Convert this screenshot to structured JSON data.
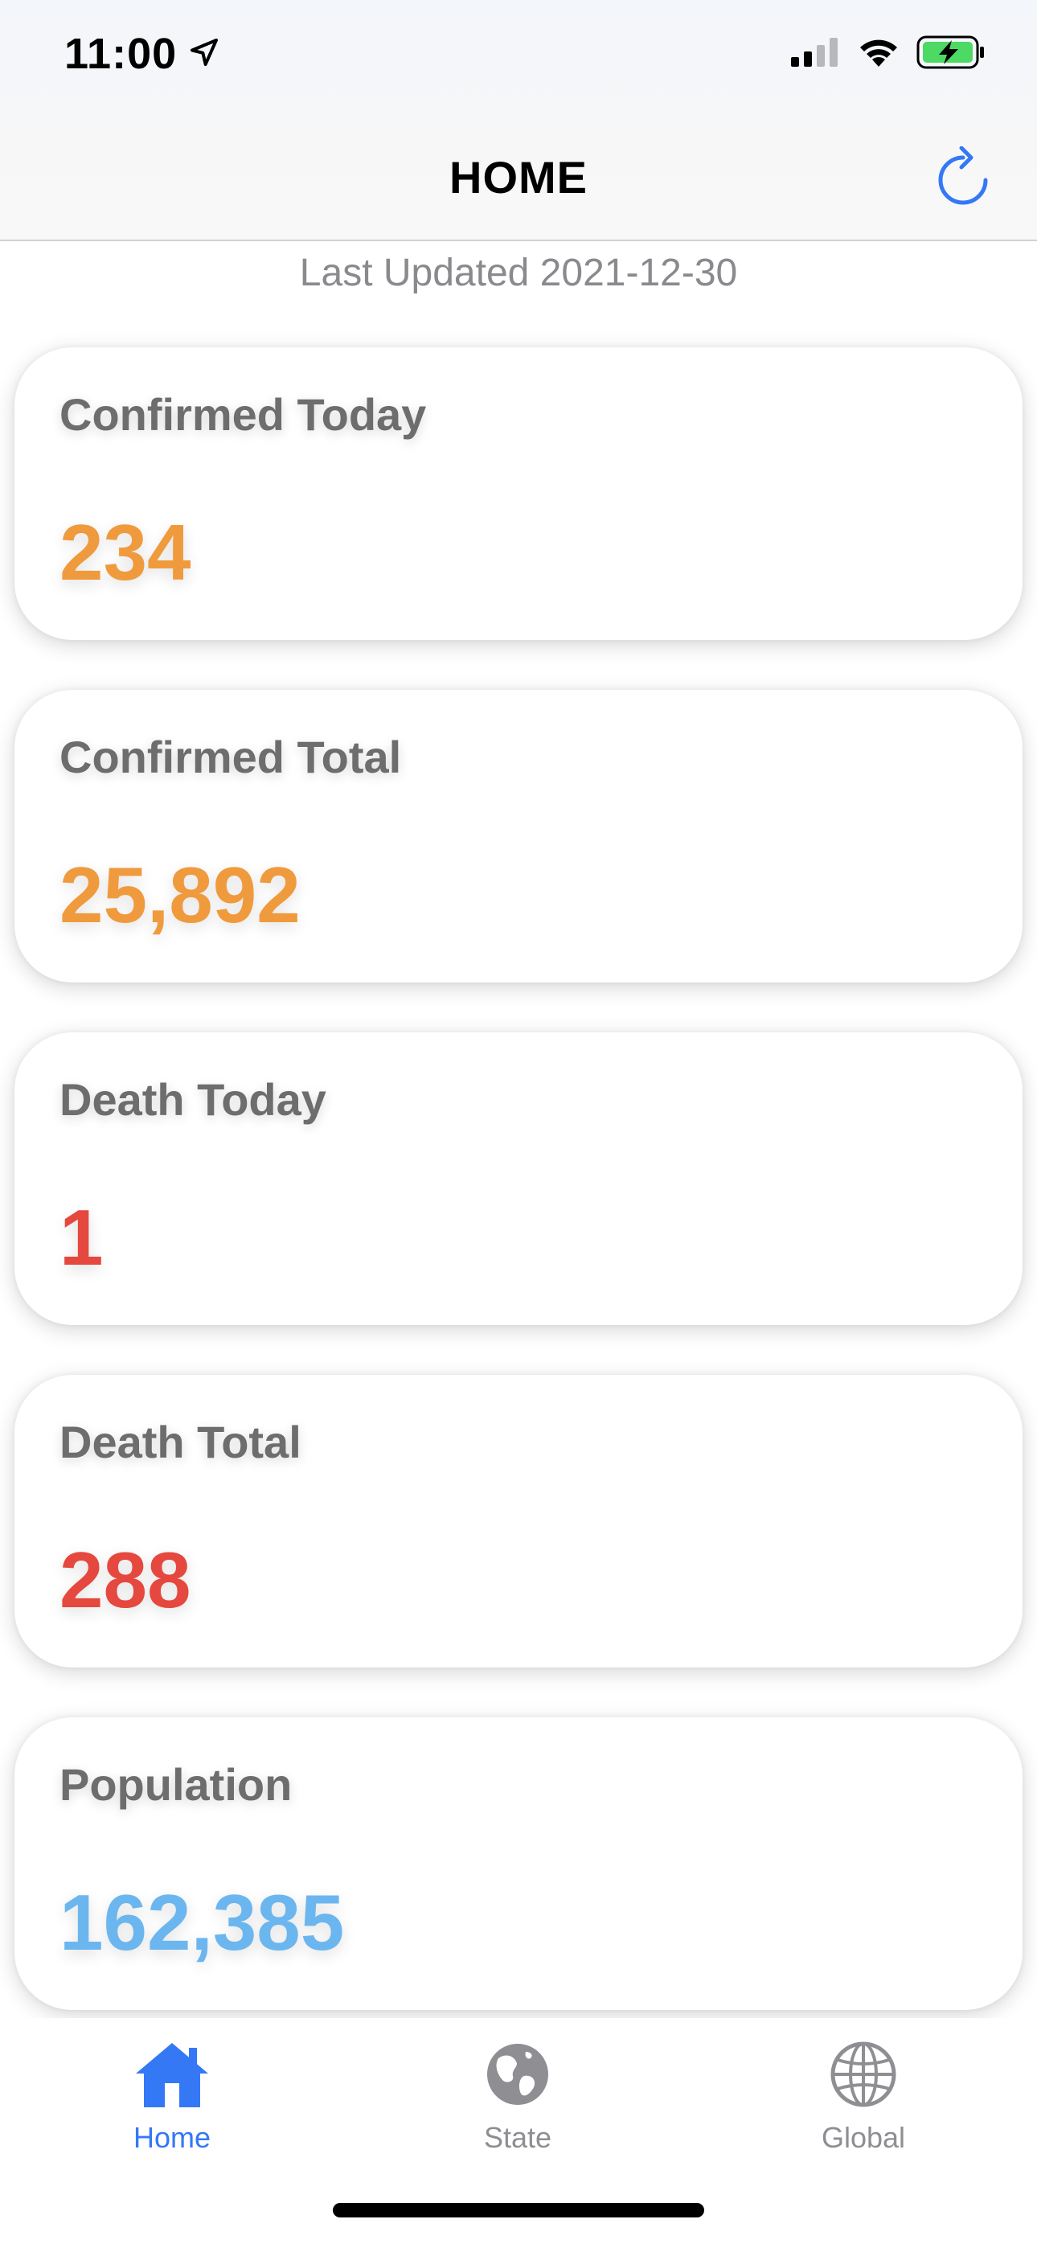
{
  "status_bar": {
    "time": "11:00",
    "location_icon": "location-arrow-icon",
    "signal_icon": "cellular-signal-icon",
    "wifi_icon": "wifi-icon",
    "battery_icon": "battery-charging-icon",
    "battery_color": "#4cd964"
  },
  "nav": {
    "title": "HOME",
    "refresh_icon": "refresh-icon",
    "accent_color": "#3478f6"
  },
  "last_updated": "Last Updated 2021-12-30",
  "cards": [
    {
      "label": "Confirmed Today",
      "value": "234",
      "color": "#f09a3e"
    },
    {
      "label": "Confirmed Total",
      "value": "25,892",
      "color": "#f09a3e"
    },
    {
      "label": "Death Today",
      "value": "1",
      "color": "#e5483e"
    },
    {
      "label": "Death Total",
      "value": "288",
      "color": "#e5483e"
    },
    {
      "label": "Population",
      "value": "162,385",
      "color": "#6cb6ef"
    }
  ],
  "tabs": [
    {
      "label": "Home",
      "icon": "house-icon",
      "active": true,
      "color": "#3478f6"
    },
    {
      "label": "State",
      "icon": "globe-americas-icon",
      "active": false,
      "color": "#8e8e93"
    },
    {
      "label": "Global",
      "icon": "globe-grid-icon",
      "active": false,
      "color": "#8e8e93"
    }
  ]
}
